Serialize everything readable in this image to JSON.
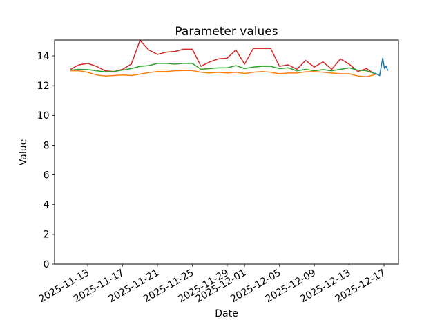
{
  "figure": {
    "background_color": "#ffffff"
  },
  "chart_data": {
    "type": "line",
    "title": "Parameter values",
    "xlabel": "Date",
    "ylabel": "Value",
    "grid": false,
    "legend": null,
    "x_unit": "days-since-first-point (first point = 2025-11-11, daily samples)",
    "xlim": [
      -1.81,
      37.66
    ],
    "ylim": [
      0,
      15.07
    ],
    "yticks": [
      0,
      2,
      4,
      6,
      8,
      10,
      12,
      14
    ],
    "xticks": [
      {
        "day": 2,
        "label": "2025-11-13"
      },
      {
        "day": 6,
        "label": "2025-11-17"
      },
      {
        "day": 10,
        "label": "2025-11-21"
      },
      {
        "day": 14,
        "label": "2025-11-25"
      },
      {
        "day": 18,
        "label": "2025-11-29"
      },
      {
        "day": 20,
        "label": "2025-12-01"
      },
      {
        "day": 24,
        "label": "2025-12-05"
      },
      {
        "day": 28,
        "label": "2025-12-09"
      },
      {
        "day": 32,
        "label": "2025-12-13"
      },
      {
        "day": 36,
        "label": "2025-12-17"
      }
    ],
    "series": [
      {
        "name": "red",
        "color": "#d62728",
        "x": [
          0,
          1,
          2,
          3,
          4,
          5,
          6,
          7,
          8,
          9,
          10,
          11,
          12,
          13,
          14,
          15,
          16,
          17,
          18,
          19,
          20,
          21,
          22,
          23,
          24,
          25,
          26,
          27,
          28,
          29,
          30,
          31,
          32,
          33,
          34,
          35
        ],
        "values": [
          13.1,
          13.4,
          13.5,
          13.3,
          13.0,
          12.95,
          13.1,
          13.45,
          15.05,
          14.4,
          14.1,
          14.25,
          14.3,
          14.45,
          14.45,
          13.3,
          13.6,
          13.8,
          13.85,
          14.4,
          13.45,
          14.5,
          14.5,
          14.5,
          13.3,
          13.4,
          13.1,
          13.7,
          13.25,
          13.6,
          13.1,
          13.8,
          13.45,
          12.95,
          13.15,
          12.75
        ]
      },
      {
        "name": "green",
        "color": "#2ca02c",
        "x": [
          0,
          1,
          2,
          3,
          4,
          5,
          6,
          7,
          8,
          9,
          10,
          11,
          12,
          13,
          14,
          15,
          16,
          17,
          18,
          19,
          20,
          21,
          22,
          23,
          24,
          25,
          26,
          27,
          28,
          29,
          30,
          31,
          32,
          33,
          34,
          35
        ],
        "values": [
          13.05,
          13.1,
          13.08,
          13.0,
          12.93,
          12.95,
          13.05,
          13.15,
          13.3,
          13.35,
          13.5,
          13.5,
          13.45,
          13.5,
          13.5,
          13.1,
          13.15,
          13.2,
          13.2,
          13.35,
          13.15,
          13.25,
          13.3,
          13.3,
          13.15,
          13.2,
          13.0,
          13.1,
          13.0,
          13.08,
          13.0,
          13.1,
          13.2,
          13.05,
          13.0,
          12.8
        ]
      },
      {
        "name": "orange",
        "color": "#ff7f0e",
        "x": [
          0,
          1,
          2,
          3,
          4,
          5,
          6,
          7,
          8,
          9,
          10,
          11,
          12,
          13,
          14,
          15,
          16,
          17,
          18,
          19,
          20,
          21,
          22,
          23,
          24,
          25,
          26,
          27,
          28,
          29,
          30,
          31,
          32,
          33,
          34,
          35
        ],
        "values": [
          13.0,
          13.0,
          12.9,
          12.72,
          12.65,
          12.68,
          12.72,
          12.68,
          12.78,
          12.88,
          12.95,
          12.95,
          13.0,
          13.02,
          13.02,
          12.9,
          12.85,
          12.9,
          12.85,
          12.9,
          12.82,
          12.9,
          12.95,
          12.9,
          12.8,
          12.85,
          12.85,
          12.93,
          12.95,
          12.9,
          12.85,
          12.8,
          12.8,
          12.65,
          12.6,
          12.75
        ]
      },
      {
        "name": "blue",
        "color": "#1f77b4",
        "x": [
          34.95,
          35.5,
          35.85,
          36.05,
          36.25,
          36.45
        ],
        "values": [
          12.85,
          12.68,
          13.85,
          13.15,
          13.3,
          13.0
        ]
      }
    ]
  }
}
